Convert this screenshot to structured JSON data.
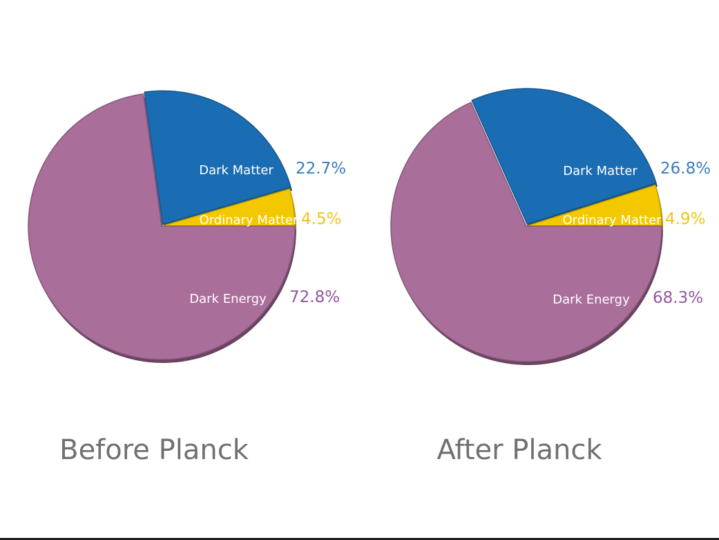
{
  "chart_data": [
    {
      "type": "pie",
      "title": "Before Planck",
      "slices": [
        {
          "label": "Ordinary Matter",
          "value": 4.5,
          "value_label": "4.5%",
          "color": "#f3c800",
          "percent_color": "#f0c419"
        },
        {
          "label": "Dark Matter",
          "value": 22.7,
          "value_label": "22.7%",
          "color": "#1b6db3",
          "percent_color": "#3a7cc0"
        },
        {
          "label": "Dark Energy",
          "value": 72.8,
          "value_label": "72.8%",
          "color": "#aa6e9b",
          "percent_color": "#9356a0"
        }
      ]
    },
    {
      "type": "pie",
      "title": "After Planck",
      "slices": [
        {
          "label": "Ordinary Matter",
          "value": 4.9,
          "value_label": "4.9%",
          "color": "#f3c800",
          "percent_color": "#f0c419"
        },
        {
          "label": "Dark Matter",
          "value": 26.8,
          "value_label": "26.8%",
          "color": "#1b6db3",
          "percent_color": "#3a7cc0"
        },
        {
          "label": "Dark Energy",
          "value": 68.3,
          "value_label": "68.3%",
          "color": "#aa6e9b",
          "percent_color": "#9356a0"
        }
      ]
    }
  ]
}
